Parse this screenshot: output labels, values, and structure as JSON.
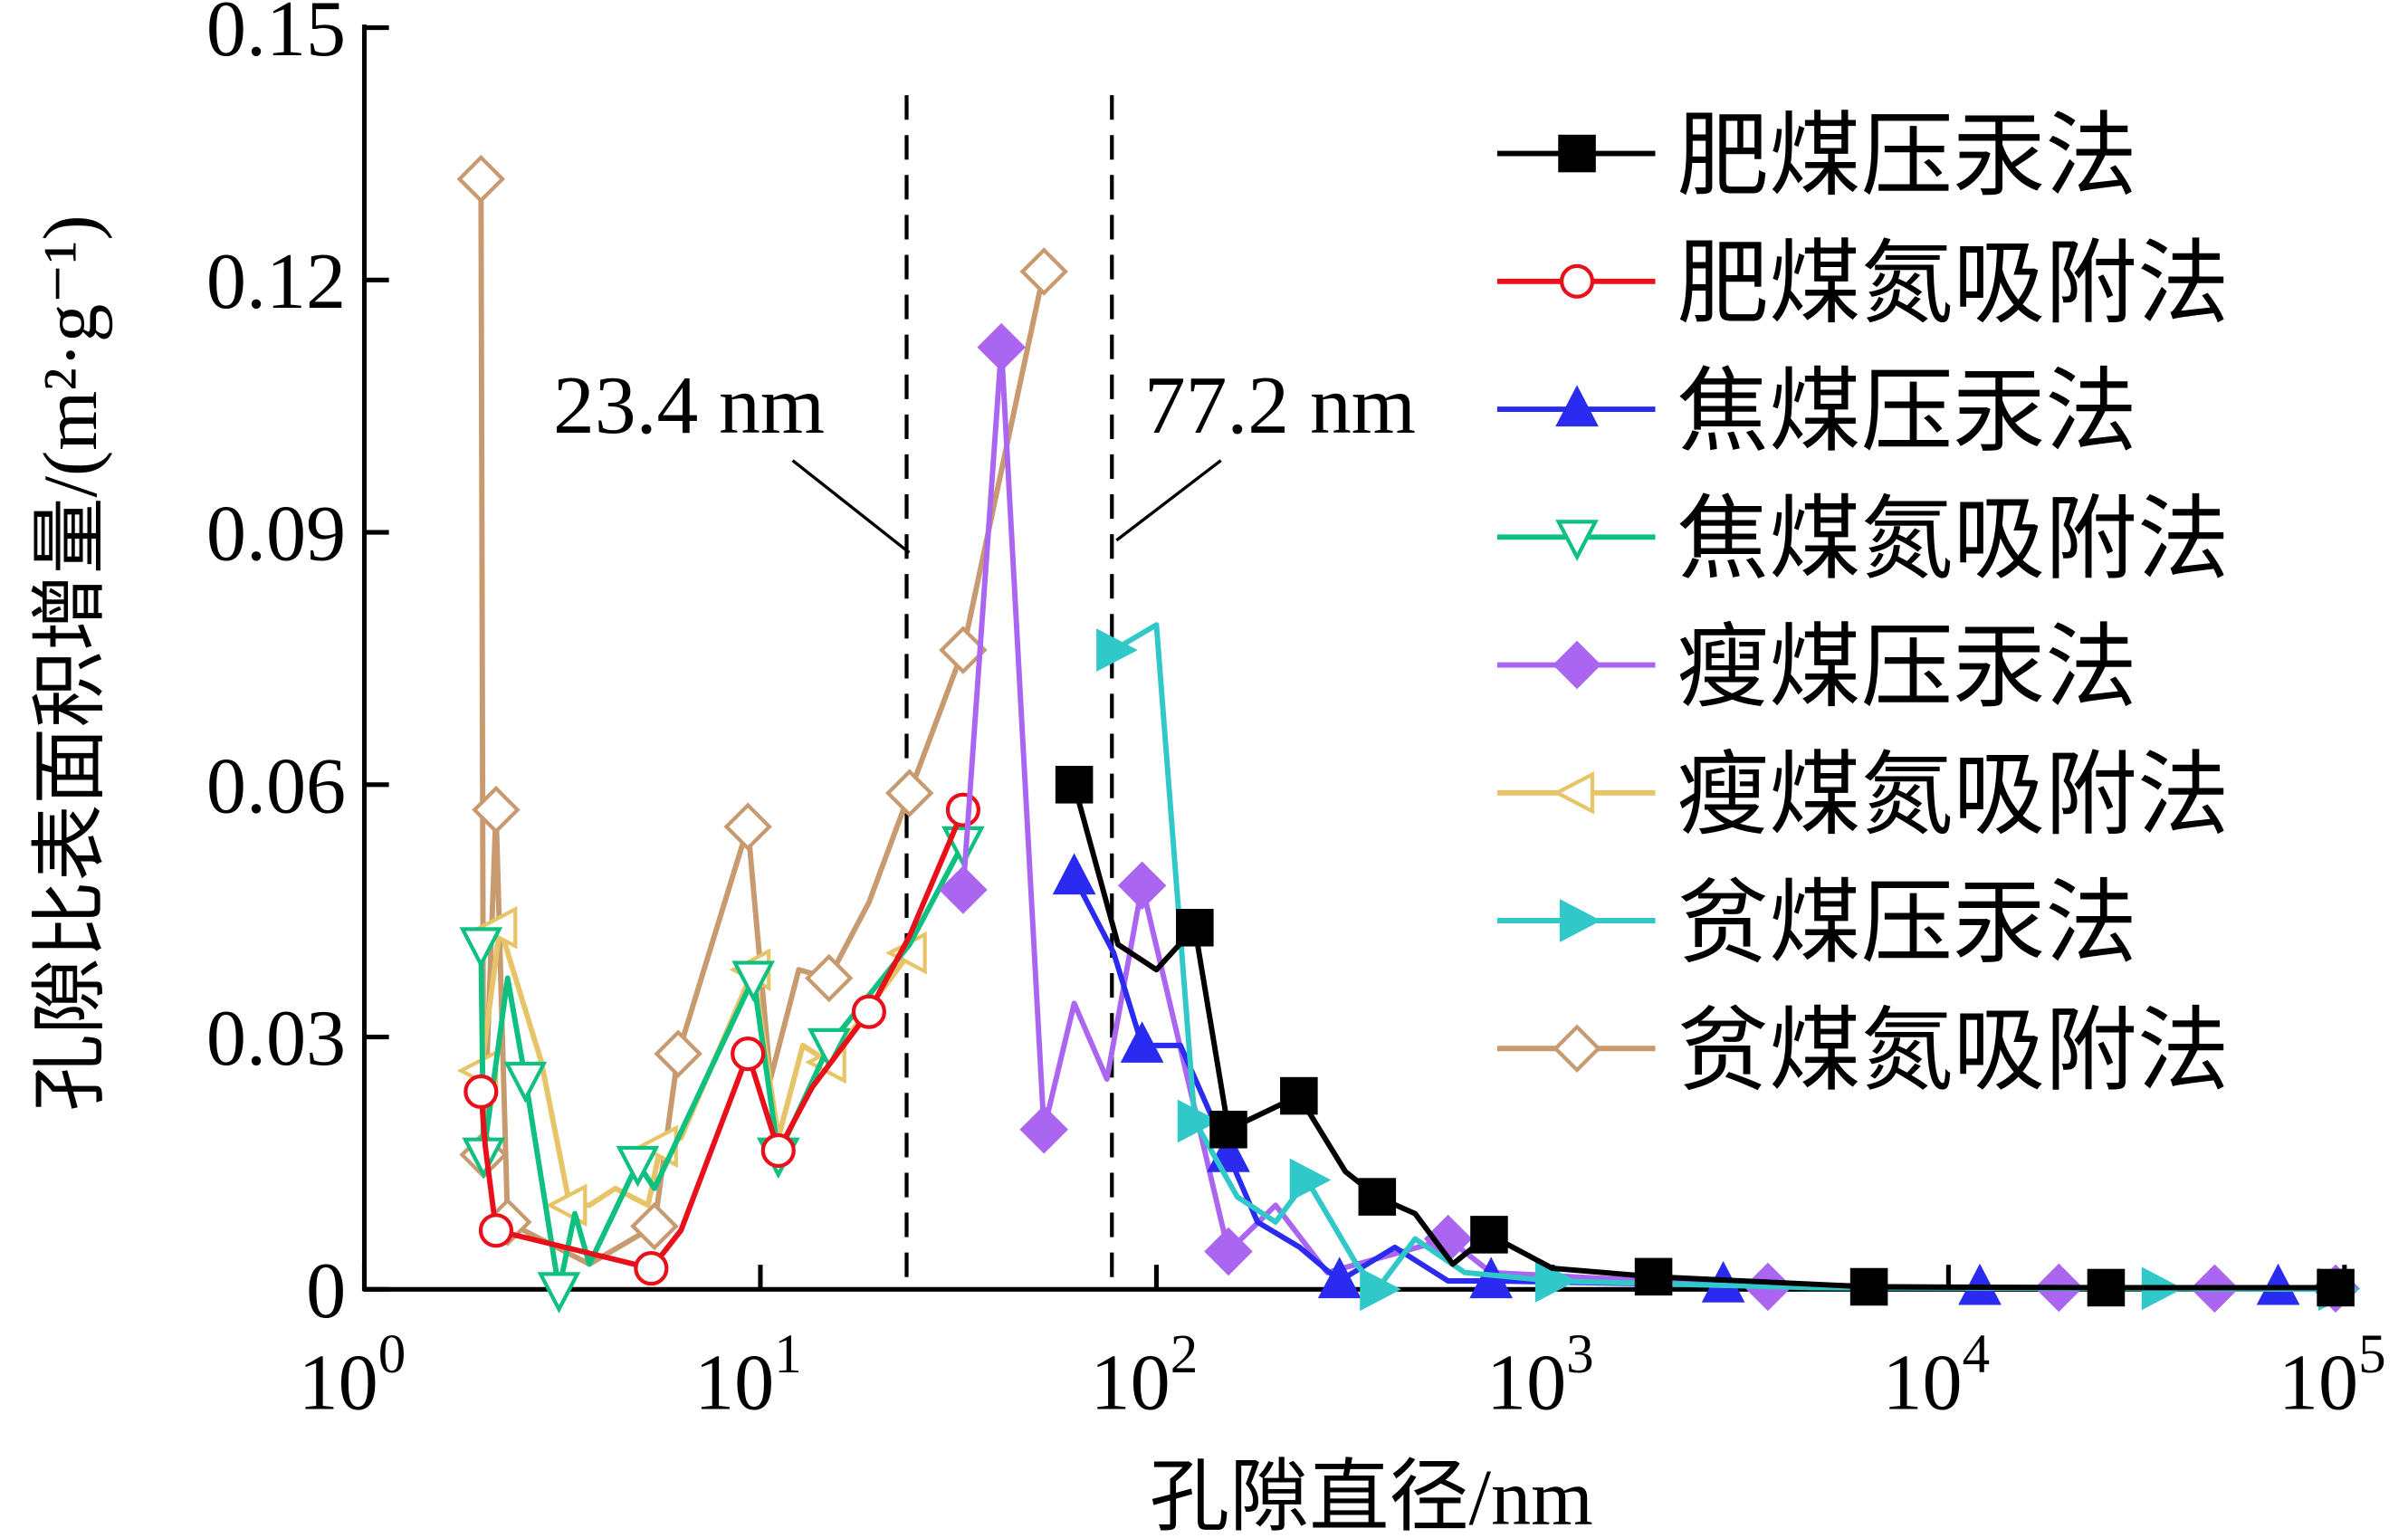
{
  "chart_data": {
    "type": "line",
    "xlabel": "孔隙直径/nm",
    "ylabel": "孔隙比表面积增量/(m²·g⁻¹)",
    "xscale": "log",
    "xlim": [
      1,
      100000
    ],
    "ylim": [
      0,
      0.15
    ],
    "x_ticks": [
      {
        "base": "10",
        "exp": "0",
        "value": 1
      },
      {
        "base": "10",
        "exp": "1",
        "value": 10
      },
      {
        "base": "10",
        "exp": "2",
        "value": 100
      },
      {
        "base": "10",
        "exp": "3",
        "value": 1000
      },
      {
        "base": "10",
        "exp": "4",
        "value": 10000
      },
      {
        "base": "10",
        "exp": "5",
        "value": 100000
      }
    ],
    "y_ticks": [
      "0",
      "0.03",
      "0.06",
      "0.09",
      "0.12",
      "0.15"
    ],
    "grid": false,
    "legend_position": "right",
    "annotations": [
      {
        "label": "23.4 nm",
        "x": 23.4
      },
      {
        "label": "77.2 nm",
        "x": 77.2
      }
    ],
    "point_format": "[x, y, marker_shown]",
    "series": [
      {
        "name": "肥煤压汞法",
        "color": "#000000",
        "marker": "square-filled",
        "points": [
          [
            62,
            0.06,
            1
          ],
          [
            80,
            0.041,
            0
          ],
          [
            100,
            0.038,
            0
          ],
          [
            125,
            0.043,
            1
          ],
          [
            152,
            0.019,
            1
          ],
          [
            229,
            0.023,
            1
          ],
          [
            300,
            0.014,
            0
          ],
          [
            361,
            0.011,
            1
          ],
          [
            450,
            0.009,
            0
          ],
          [
            560,
            0.003,
            0
          ],
          [
            692,
            0.0065,
            1
          ],
          [
            1000,
            0.0025,
            0
          ],
          [
            1800,
            0.0015,
            1
          ],
          [
            6300,
            0.0003,
            1
          ],
          [
            25000,
            0.0002,
            1
          ],
          [
            95000,
            0.0002,
            1
          ]
        ]
      },
      {
        "name": "肥煤氮吸附法",
        "color": "#e8101a",
        "marker": "circle-open",
        "points": [
          [
            1.97,
            0.0235,
            1
          ],
          [
            2.02,
            0.017,
            0
          ],
          [
            2.15,
            0.007,
            1
          ],
          [
            5.3,
            0.0025,
            1
          ],
          [
            6.3,
            0.007,
            0
          ],
          [
            9.3,
            0.028,
            1
          ],
          [
            11.1,
            0.0165,
            1
          ],
          [
            13.5,
            0.024,
            0
          ],
          [
            18.8,
            0.033,
            1
          ],
          [
            23.8,
            0.042,
            0
          ],
          [
            32.5,
            0.057,
            1
          ]
        ]
      },
      {
        "name": "焦煤压汞法",
        "color": "#2a2af0",
        "marker": "triangle-up-filled",
        "points": [
          [
            62,
            0.049,
            1
          ],
          [
            78,
            0.04,
            0
          ],
          [
            92,
            0.029,
            1
          ],
          [
            115,
            0.029,
            0
          ],
          [
            152,
            0.016,
            1
          ],
          [
            180,
            0.008,
            0
          ],
          [
            230,
            0.005,
            0
          ],
          [
            290,
            0.001,
            1
          ],
          [
            400,
            0.005,
            0
          ],
          [
            545,
            0.001,
            0
          ],
          [
            700,
            0.001,
            1
          ],
          [
            2700,
            0.0005,
            1
          ],
          [
            12000,
            0.0002,
            1
          ],
          [
            68000,
            0.0002,
            1
          ],
          [
            95000,
            0.0001,
            0
          ]
        ]
      },
      {
        "name": "焦煤氮吸附法",
        "color": "#10c080",
        "marker": "triangle-down-open",
        "points": [
          [
            1.97,
            0.041,
            1
          ],
          [
            2.0,
            0.016,
            1
          ],
          [
            2.3,
            0.037,
            0
          ],
          [
            2.55,
            0.025,
            1
          ],
          [
            3.1,
            0.0,
            1
          ],
          [
            3.4,
            0.009,
            0
          ],
          [
            3.7,
            0.003,
            0
          ],
          [
            4.9,
            0.015,
            1
          ],
          [
            5.4,
            0.012,
            0
          ],
          [
            9.6,
            0.037,
            1
          ],
          [
            11.1,
            0.016,
            1
          ],
          [
            14.9,
            0.029,
            1
          ],
          [
            23.8,
            0.041,
            0
          ],
          [
            32.5,
            0.053,
            1
          ]
        ]
      },
      {
        "name": "瘦煤压汞法",
        "color": "#aa66f0",
        "marker": "diamond-filled",
        "points": [
          [
            32.5,
            0.0475,
            1
          ],
          [
            40.6,
            0.112,
            1
          ],
          [
            52,
            0.019,
            1
          ],
          [
            62,
            0.034,
            0
          ],
          [
            75,
            0.025,
            0
          ],
          [
            92,
            0.048,
            1
          ],
          [
            152,
            0.0045,
            1
          ],
          [
            200,
            0.01,
            0
          ],
          [
            270,
            0.002,
            0
          ],
          [
            545,
            0.006,
            1
          ],
          [
            700,
            0.002,
            0
          ],
          [
            3500,
            0.0003,
            1
          ],
          [
            19000,
            0.0002,
            1
          ],
          [
            47000,
            0.0001,
            1
          ],
          [
            95000,
            0.0001,
            1
          ]
        ]
      },
      {
        "name": "瘦煤氮吸附法",
        "color": "#e8c468",
        "marker": "triangle-left-open",
        "points": [
          [
            1.97,
            0.026,
            1
          ],
          [
            2.2,
            0.043,
            1
          ],
          [
            2.8,
            0.027,
            0
          ],
          [
            3.3,
            0.01,
            1
          ],
          [
            3.7,
            0.01,
            0
          ],
          [
            4.3,
            0.012,
            0
          ],
          [
            5.2,
            0.01,
            0
          ],
          [
            5.6,
            0.017,
            1
          ],
          [
            6.3,
            0.018,
            0
          ],
          [
            9.6,
            0.038,
            1
          ],
          [
            11.1,
            0.018,
            0
          ],
          [
            12.8,
            0.029,
            0
          ],
          [
            14.9,
            0.027,
            1
          ],
          [
            23.8,
            0.04,
            1
          ]
        ]
      },
      {
        "name": "贫煤压汞法",
        "color": "#30c8c8",
        "marker": "triangle-right-filled",
        "points": [
          [
            78,
            0.076,
            1
          ],
          [
            100,
            0.079,
            0
          ],
          [
            125,
            0.02,
            1
          ],
          [
            160,
            0.011,
            0
          ],
          [
            200,
            0.008,
            0
          ],
          [
            240,
            0.013,
            1
          ],
          [
            320,
            0.003,
            0
          ],
          [
            361,
            0.0,
            1
          ],
          [
            450,
            0.006,
            0
          ],
          [
            600,
            0.002,
            0
          ],
          [
            1000,
            0.001,
            1
          ],
          [
            4500,
            0.0002,
            0
          ],
          [
            34000,
            0.0001,
            1
          ],
          [
            95000,
            0.0,
            1
          ]
        ]
      },
      {
        "name": "贫煤氮吸附法",
        "color": "#c89a70",
        "marker": "diamond-open",
        "points": [
          [
            1.97,
            0.132,
            1
          ],
          [
            2.0,
            0.016,
            1
          ],
          [
            2.15,
            0.057,
            1
          ],
          [
            2.3,
            0.008,
            1
          ],
          [
            3.7,
            0.003,
            0
          ],
          [
            5.4,
            0.0075,
            1
          ],
          [
            6.2,
            0.028,
            1
          ],
          [
            9.3,
            0.055,
            1
          ],
          [
            10.6,
            0.025,
            0
          ],
          [
            12.5,
            0.038,
            0
          ],
          [
            14.9,
            0.037,
            1
          ],
          [
            18.8,
            0.046,
            0
          ],
          [
            23.8,
            0.059,
            1
          ],
          [
            32.5,
            0.076,
            1
          ],
          [
            52,
            0.121,
            1
          ]
        ]
      }
    ]
  }
}
